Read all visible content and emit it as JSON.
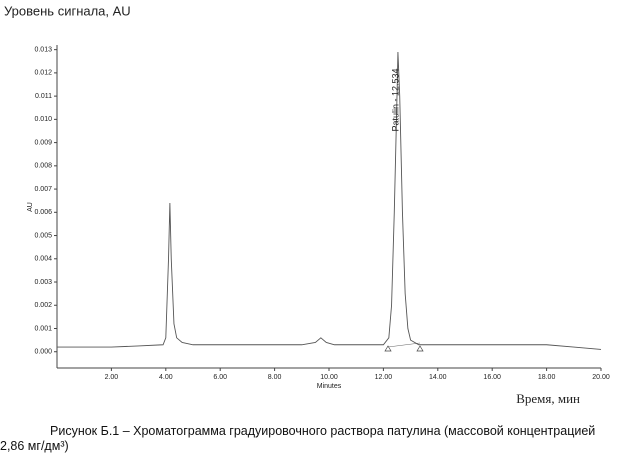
{
  "chart_data": {
    "type": "line",
    "title": "Уровень сигнала, AU",
    "y_label": "AU",
    "x_label": "Minutes",
    "x_label_ru": "Время, мин",
    "caption": "Рисунок Б.1 – Хроматограмма градуировочного  раствора патулина (массовой концентрацией 2,86 мг/дм³)",
    "annotation": {
      "x": 12.534,
      "text": "Patulin - 12.534"
    },
    "x": [
      0,
      1,
      2,
      3,
      3.9,
      4.0,
      4.1,
      4.15,
      4.2,
      4.3,
      4.4,
      4.6,
      5,
      6,
      7,
      8,
      9,
      9.5,
      9.7,
      9.9,
      10.2,
      11,
      12,
      12.2,
      12.3,
      12.4,
      12.5,
      12.534,
      12.6,
      12.7,
      12.8,
      12.9,
      13.0,
      13.3,
      14,
      16,
      18,
      19,
      20
    ],
    "series": [
      {
        "name": "AU",
        "color": "#555555",
        "values": [
          0.0002,
          0.0002,
          0.0002,
          0.00025,
          0.0003,
          0.0006,
          0.004,
          0.0064,
          0.004,
          0.0012,
          0.0006,
          0.0004,
          0.0003,
          0.0003,
          0.0003,
          0.0003,
          0.0003,
          0.0004,
          0.0006,
          0.0004,
          0.0003,
          0.0003,
          0.0003,
          0.0006,
          0.002,
          0.006,
          0.011,
          0.0129,
          0.011,
          0.006,
          0.0025,
          0.001,
          0.0005,
          0.0003,
          0.0003,
          0.0003,
          0.0003,
          0.0002,
          0.0001
        ]
      }
    ],
    "xlim": [
      0,
      20
    ],
    "ylim": [
      -0.0007,
      0.0132
    ],
    "xticks": [
      {
        "value": 2,
        "label": "2.00"
      },
      {
        "value": 4,
        "label": "4.00"
      },
      {
        "value": 6,
        "label": "6.00"
      },
      {
        "value": 8,
        "label": "8.00"
      },
      {
        "value": 10,
        "label": "10.00"
      },
      {
        "value": 12,
        "label": "12.00"
      },
      {
        "value": 14,
        "label": "14.00"
      },
      {
        "value": 16,
        "label": "16.00"
      },
      {
        "value": 18,
        "label": "18.00"
      },
      {
        "value": 20,
        "label": "20.00"
      }
    ],
    "yticks": [
      {
        "value": 0,
        "label": "0.000"
      },
      {
        "value": 0.001,
        "label": "0.001"
      },
      {
        "value": 0.002,
        "label": "0.002"
      },
      {
        "value": 0.003,
        "label": "0.003"
      },
      {
        "value": 0.004,
        "label": "0.004"
      },
      {
        "value": 0.005,
        "label": "0.005"
      },
      {
        "value": 0.006,
        "label": "0.006"
      },
      {
        "value": 0.007,
        "label": "0.007"
      },
      {
        "value": 0.008,
        "label": "0.008"
      },
      {
        "value": 0.009,
        "label": "0.009"
      },
      {
        "value": 0.01,
        "label": "0.010"
      },
      {
        "value": 0.011,
        "label": "0.011"
      },
      {
        "value": 0.012,
        "label": "0.012"
      },
      {
        "value": 0.013,
        "label": "0.013"
      }
    ]
  }
}
